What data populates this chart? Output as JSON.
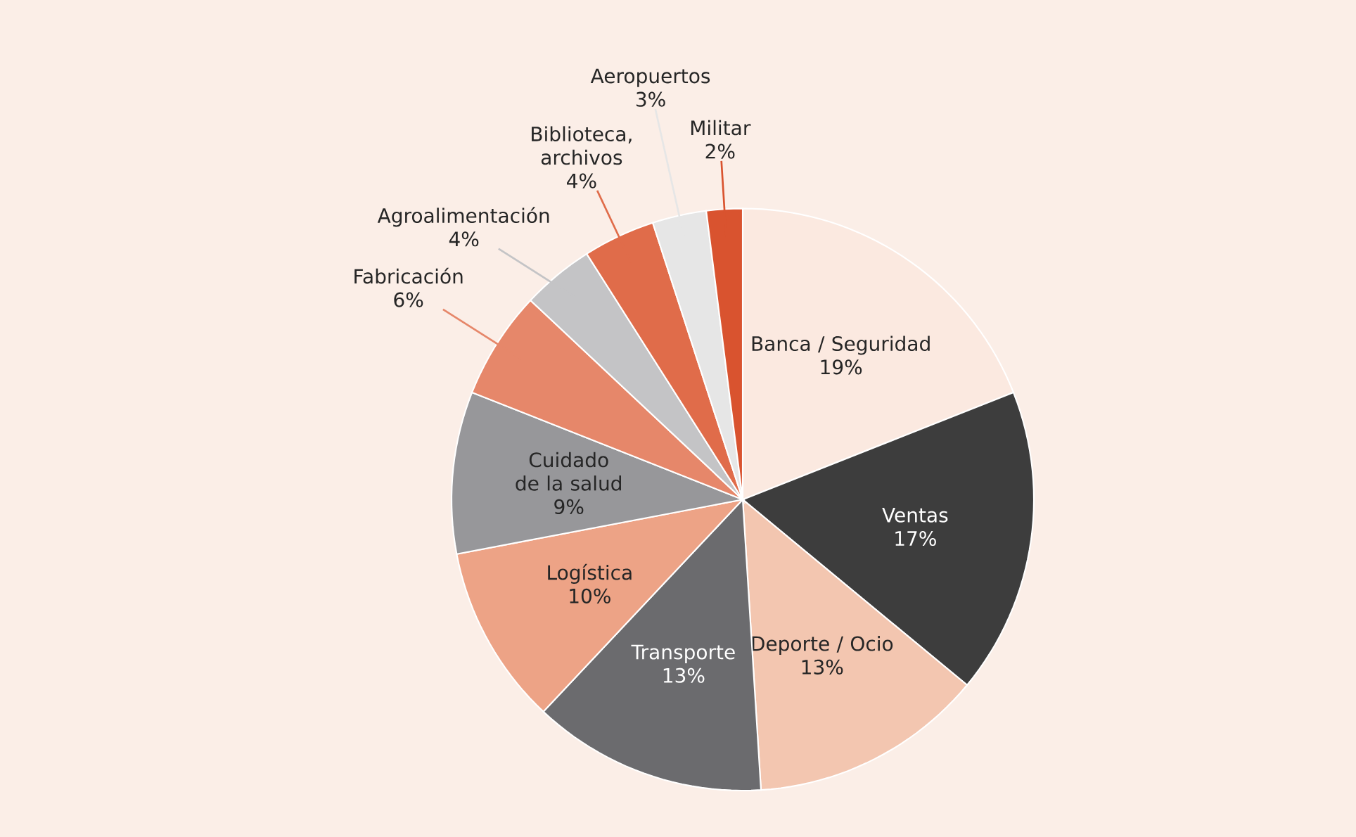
{
  "chart_data": {
    "type": "pie",
    "categories": [
      "Banca / Seguridad",
      "Ventas",
      "Deporte / Ocio",
      "Transporte",
      "Logística",
      "Cuidado de la salud",
      "Fabricación",
      "Agroalimentación",
      "Biblioteca, archivos",
      "Aeropuertos",
      "Militar"
    ],
    "values": [
      19,
      17,
      13,
      13,
      10,
      9,
      6,
      4,
      4,
      3,
      2
    ],
    "value_labels": [
      "19%",
      "17%",
      "13%",
      "13%",
      "10%",
      "9%",
      "6%",
      "4%",
      "4%",
      "3%",
      "2%"
    ],
    "colors": [
      "#fbe9e0",
      "#3d3d3d",
      "#f3c6b0",
      "#6b6b6e",
      "#eda386",
      "#97979a",
      "#e6876a",
      "#c4c4c6",
      "#e06c4a",
      "#e6e6e6",
      "#d9532f"
    ]
  }
}
